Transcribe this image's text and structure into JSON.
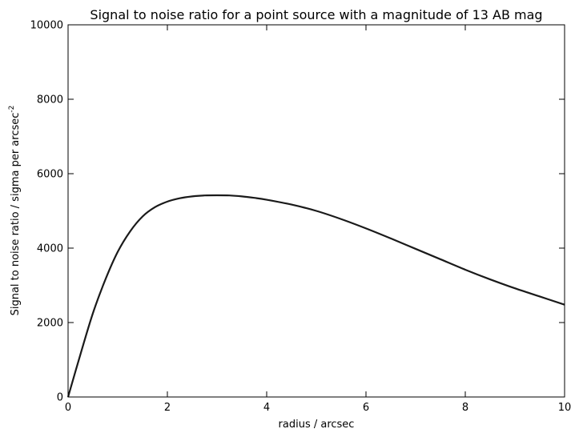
{
  "chart_data": {
    "type": "line",
    "title": "Signal to noise ratio for a point source with a magnitude of 13 AB mag",
    "xlabel": "radius / arcsec",
    "ylabel": "Signal to noise ratio / sigma per arcsec",
    "ylabel_superscript": "-2",
    "xlim": [
      0,
      10
    ],
    "ylim": [
      0,
      10000
    ],
    "x_ticks": [
      0,
      2,
      4,
      6,
      8,
      10
    ],
    "y_ticks": [
      0,
      2000,
      4000,
      6000,
      8000,
      10000
    ],
    "x_tick_labels": [
      "0",
      "2",
      "4",
      "6",
      "8",
      "10"
    ],
    "y_tick_labels": [
      "0",
      "2000",
      "4000",
      "6000",
      "8000",
      "10000"
    ],
    "grid": false,
    "line_color": "#1a1a1a",
    "series": [
      {
        "x": [
          0,
          0.25,
          0.5,
          0.75,
          1.0,
          1.25,
          1.5,
          1.75,
          2.0,
          2.25,
          2.5,
          2.75,
          3.0,
          3.25,
          3.5,
          3.75,
          4.0,
          4.5,
          5.0,
          5.5,
          6.0,
          6.5,
          7.0,
          7.5,
          8.0,
          8.5,
          9.0,
          9.5,
          10.0
        ],
        "y": [
          0,
          1150,
          2250,
          3150,
          3900,
          4450,
          4850,
          5100,
          5250,
          5340,
          5390,
          5415,
          5420,
          5415,
          5390,
          5350,
          5300,
          5170,
          5000,
          4780,
          4530,
          4260,
          3980,
          3700,
          3420,
          3160,
          2920,
          2700,
          2480
        ]
      }
    ]
  }
}
